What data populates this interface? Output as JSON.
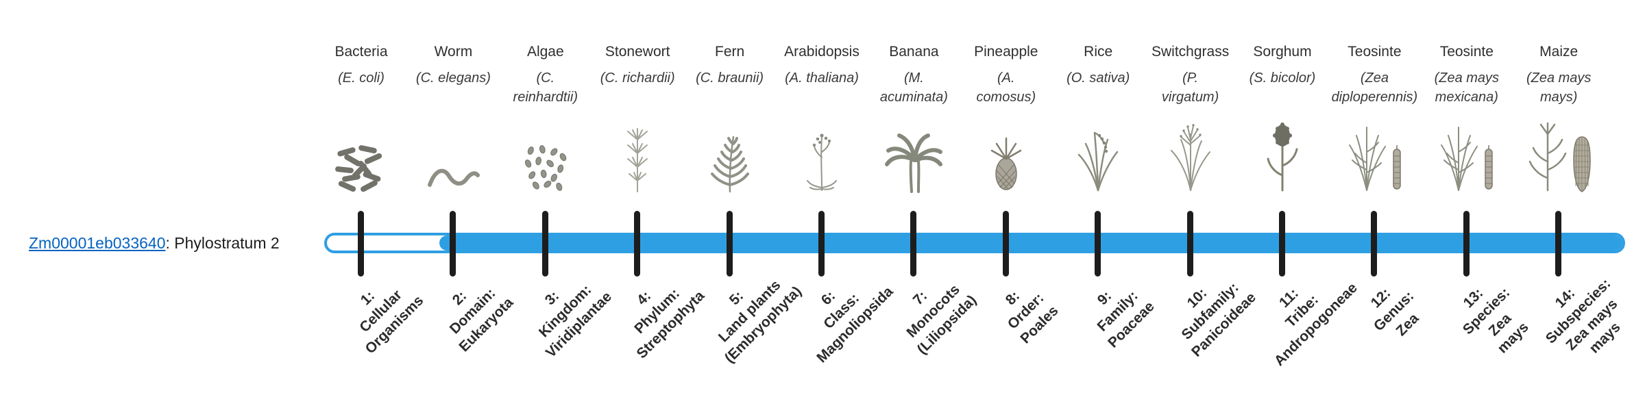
{
  "gene": {
    "id": "Zm00001eb033640",
    "suffix": ": Phylostratum 2",
    "phylostratum_label": "Phylostratum 2"
  },
  "bar": {
    "fill_color": "#2F9FE3",
    "track_color": "#ffffff",
    "tick_color": "#1d1d1d",
    "filled_from_stratum": 2,
    "strata_count": 14
  },
  "link_color": "#0563C1",
  "columns": [
    {
      "name": "Bacteria",
      "latin": "(E. coli)",
      "icons": [
        "bacteria-icon"
      ],
      "tick_label": "1:\nCellular\nOrganisms"
    },
    {
      "name": "Worm",
      "latin": "(C. elegans)",
      "icons": [
        "worm-icon"
      ],
      "tick_label": "2:\nDomain:\nEukaryota"
    },
    {
      "name": "Algae",
      "latin": "(C.\nreinhardtii)",
      "icons": [
        "algae-icon"
      ],
      "tick_label": "3:\nKingdom:\nViridiplantae"
    },
    {
      "name": "Stonewort",
      "latin": "(C. richardii)",
      "icons": [
        "stonewort-icon"
      ],
      "tick_label": "4:\nPhylum:\nStreptophyta"
    },
    {
      "name": "Fern",
      "latin": "(C. braunii)",
      "icons": [
        "fern-icon"
      ],
      "tick_label": "5:\nLand plants\n(Embryophyta)"
    },
    {
      "name": "Arabidopsis",
      "latin": "(A. thaliana)",
      "icons": [
        "arabidopsis-icon"
      ],
      "tick_label": "6:\nClass:\nMagnoliopsida"
    },
    {
      "name": "Banana",
      "latin": "(M.\nacuminata)",
      "icons": [
        "banana-icon"
      ],
      "tick_label": "7:\nMonocots\n(Liliopsida)"
    },
    {
      "name": "Pineapple",
      "latin": "(A.\ncomosus)",
      "icons": [
        "pineapple-icon"
      ],
      "tick_label": "8:\nOrder:\nPoales"
    },
    {
      "name": "Rice",
      "latin": "(O. sativa)",
      "icons": [
        "rice-icon"
      ],
      "tick_label": "9:\nFamily:\nPoaceae"
    },
    {
      "name": "Switchgrass",
      "latin": "(P.\nvirgatum)",
      "icons": [
        "switchgrass-icon"
      ],
      "tick_label": "10:\nSubfamily:\nPanicoideae"
    },
    {
      "name": "Sorghum",
      "latin": "(S. bicolor)",
      "icons": [
        "sorghum-icon"
      ],
      "tick_label": "11:\nTribe:\nAndropogoneae"
    },
    {
      "name": "Teosinte",
      "latin": "(Zea\ndiploperennis)",
      "icons": [
        "teosinte-plant-icon",
        "teosinte-ear-icon"
      ],
      "tick_label": "12:\nGenus:\nZea"
    },
    {
      "name": "Teosinte",
      "latin": "(Zea mays\nmexicana)",
      "icons": [
        "teosinte-plant-icon",
        "teosinte-ear-icon"
      ],
      "tick_label": "13:\nSpecies:\nZea\nmays"
    },
    {
      "name": "Maize",
      "latin": "(Zea mays\nmays)",
      "icons": [
        "maize-plant-icon",
        "maize-ear-icon"
      ],
      "tick_label": "14:\nSubspecies:\nZea mays\nmays"
    }
  ],
  "chart_data": {
    "type": "bar",
    "orientation": "horizontal",
    "title": "Zm00001eb033640: Phylostratum 2",
    "legend": "off",
    "grid": "off",
    "categories": [
      "1: Cellular Organisms",
      "2: Domain: Eukaryota",
      "3: Kingdom: Viridiplantae",
      "4: Phylum: Streptophyta",
      "5: Land plants (Embryophyta)",
      "6: Class: Magnoliopsida",
      "7: Monocots (Liliopsida)",
      "8: Order: Poales",
      "9: Family: Poaceae",
      "10: Subfamily: Panicoideae",
      "11: Tribe: Andropogoneae",
      "12: Genus: Zea",
      "13: Species: Zea mays",
      "14: Subspecies: Zea mays mays"
    ],
    "category_species": [
      "Bacteria (E. coli)",
      "Worm (C. elegans)",
      "Algae (C. reinhardtii)",
      "Stonewort (C. richardii)",
      "Fern (C. braunii)",
      "Arabidopsis (A. thaliana)",
      "Banana (M. acuminata)",
      "Pineapple (A. comosus)",
      "Rice (O. sativa)",
      "Switchgrass (P. virgatum)",
      "Sorghum (S. bicolor)",
      "Teosinte (Zea diploperennis)",
      "Teosinte (Zea mays mexicana)",
      "Maize (Zea mays mays)"
    ],
    "series": [
      {
        "name": "Zm00001eb033640",
        "phylostratum": 2,
        "bar_spans_strata": [
          2,
          14
        ]
      }
    ]
  }
}
